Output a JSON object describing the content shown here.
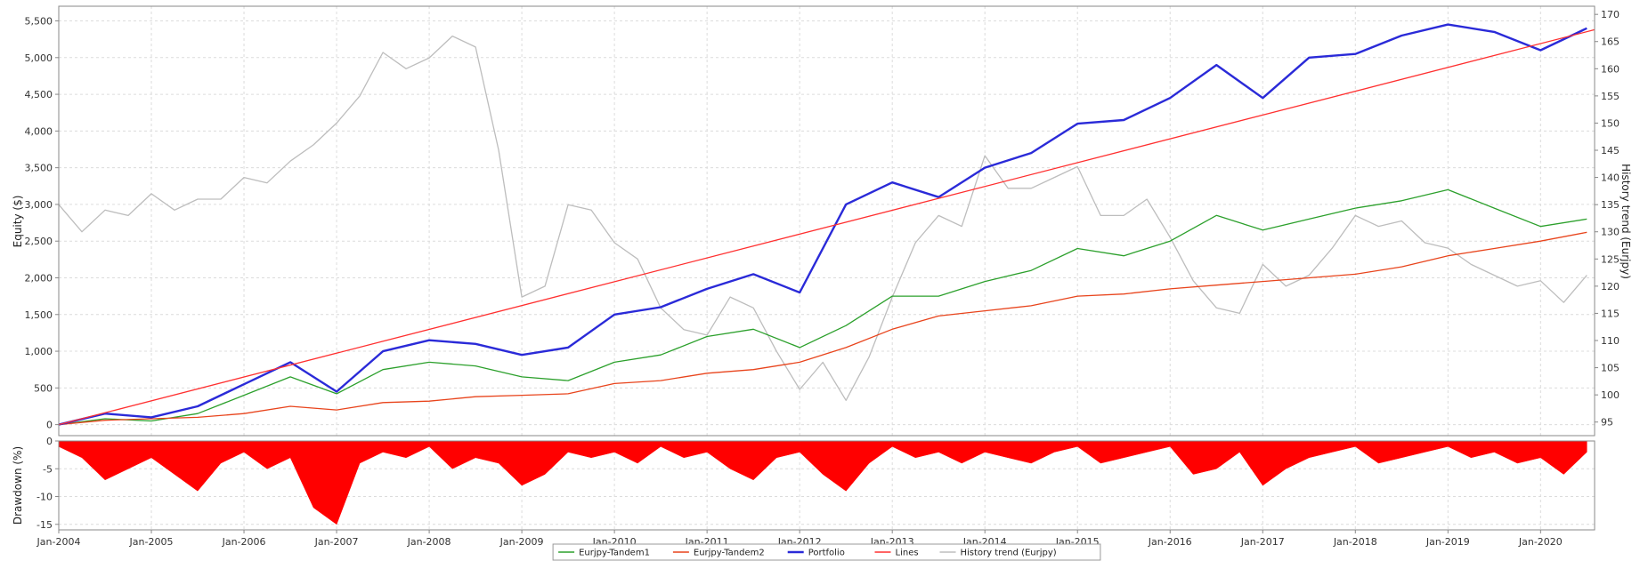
{
  "chart_data": [
    {
      "type": "line",
      "title": "",
      "ylabel": "Equity ($)",
      "y2label": "History trend (Eurjpy)",
      "xlim": [
        "2004-01-01",
        "2020-08-01"
      ],
      "ylim": [
        -150,
        5700
      ],
      "y2lim": [
        92.5,
        171.5
      ],
      "x_ticks": [
        "Jan-2004",
        "Jan-2005",
        "Jan-2006",
        "Jan-2007",
        "Jan-2008",
        "Jan-2009",
        "Jan-2010",
        "Jan-2011",
        "Jan-2012",
        "Jan-2013",
        "Jan-2014",
        "Jan-2015",
        "Jan-2016",
        "Jan-2017",
        "Jan-2018",
        "Jan-2019",
        "Jan-2020"
      ],
      "y_ticks": [
        "0",
        "500",
        "1,000",
        "1,500",
        "2,000",
        "2,500",
        "3,000",
        "3,500",
        "4,000",
        "4,500",
        "5,000",
        "5,500"
      ],
      "y2_ticks": [
        "95",
        "100",
        "105",
        "110",
        "115",
        "120",
        "125",
        "130",
        "135",
        "140",
        "145",
        "150",
        "155",
        "160",
        "165",
        "170"
      ],
      "grid": true,
      "legend_position": "bottom-center",
      "series": [
        {
          "name": "Eurjpy-Tandem1",
          "color": "#2ca02c",
          "axis": "left",
          "x": [
            "2004-01",
            "2004-07",
            "2005-01",
            "2005-07",
            "2006-01",
            "2006-07",
            "2007-01",
            "2007-07",
            "2008-01",
            "2008-07",
            "2009-01",
            "2009-07",
            "2010-01",
            "2010-07",
            "2011-01",
            "2011-07",
            "2012-01",
            "2012-07",
            "2013-01",
            "2013-07",
            "2014-01",
            "2014-07",
            "2015-01",
            "2015-07",
            "2016-01",
            "2016-07",
            "2017-01",
            "2017-07",
            "2018-01",
            "2018-07",
            "2019-01",
            "2019-07",
            "2020-01",
            "2020-07"
          ],
          "y": [
            0,
            80,
            50,
            150,
            400,
            650,
            420,
            750,
            850,
            800,
            650,
            600,
            850,
            950,
            1200,
            1300,
            1050,
            1350,
            1750,
            1750,
            1950,
            2100,
            2400,
            2300,
            2500,
            2850,
            2650,
            2800,
            2950,
            3050,
            3200,
            2950,
            2700,
            2800
          ]
        },
        {
          "name": "Eurjpy-Tandem2",
          "color": "#e8441c",
          "axis": "left",
          "x": [
            "2004-01",
            "2004-07",
            "2005-01",
            "2005-07",
            "2006-01",
            "2006-07",
            "2007-01",
            "2007-07",
            "2008-01",
            "2008-07",
            "2009-01",
            "2009-07",
            "2010-01",
            "2010-07",
            "2011-01",
            "2011-07",
            "2012-01",
            "2012-07",
            "2013-01",
            "2013-07",
            "2014-01",
            "2014-07",
            "2015-01",
            "2015-07",
            "2016-01",
            "2016-07",
            "2017-01",
            "2017-07",
            "2018-01",
            "2018-07",
            "2019-01",
            "2019-07",
            "2020-01",
            "2020-07"
          ],
          "y": [
            0,
            60,
            80,
            100,
            150,
            250,
            200,
            300,
            320,
            380,
            400,
            420,
            560,
            600,
            700,
            750,
            850,
            1050,
            1300,
            1480,
            1550,
            1620,
            1750,
            1780,
            1850,
            1900,
            1950,
            2000,
            2050,
            2150,
            2300,
            2400,
            2500,
            2620
          ]
        },
        {
          "name": "Portfolio",
          "color": "#2a2ad8",
          "axis": "left",
          "x": [
            "2004-01",
            "2004-07",
            "2005-01",
            "2005-07",
            "2006-01",
            "2006-07",
            "2007-01",
            "2007-07",
            "2008-01",
            "2008-07",
            "2009-01",
            "2009-07",
            "2010-01",
            "2010-07",
            "2011-01",
            "2011-07",
            "2012-01",
            "2012-07",
            "2013-01",
            "2013-07",
            "2014-01",
            "2014-07",
            "2015-01",
            "2015-07",
            "2016-01",
            "2016-07",
            "2017-01",
            "2017-07",
            "2018-01",
            "2018-07",
            "2019-01",
            "2019-07",
            "2020-01",
            "2020-07"
          ],
          "y": [
            0,
            150,
            100,
            250,
            550,
            850,
            450,
            1000,
            1150,
            1100,
            950,
            1050,
            1500,
            1600,
            1850,
            2050,
            1800,
            3000,
            3300,
            3100,
            3500,
            3700,
            4100,
            4150,
            4450,
            4900,
            4450,
            5000,
            5050,
            5300,
            5450,
            5350,
            5100,
            5400
          ]
        },
        {
          "name": "Lines",
          "color": "#ff3030",
          "axis": "left",
          "x": [
            "2004-01",
            "2020-08"
          ],
          "y": [
            0,
            5380
          ]
        },
        {
          "name": "History trend (Eurjpy)",
          "color": "#bdbdbd",
          "axis": "right",
          "x": [
            "2004-01",
            "2004-04",
            "2004-07",
            "2004-10",
            "2005-01",
            "2005-04",
            "2005-07",
            "2005-10",
            "2006-01",
            "2006-04",
            "2006-07",
            "2006-10",
            "2007-01",
            "2007-04",
            "2007-07",
            "2007-10",
            "2008-01",
            "2008-04",
            "2008-07",
            "2008-10",
            "2009-01",
            "2009-04",
            "2009-07",
            "2009-10",
            "2010-01",
            "2010-04",
            "2010-07",
            "2010-10",
            "2011-01",
            "2011-04",
            "2011-07",
            "2011-10",
            "2012-01",
            "2012-04",
            "2012-07",
            "2012-10",
            "2013-01",
            "2013-04",
            "2013-07",
            "2013-10",
            "2014-01",
            "2014-04",
            "2014-07",
            "2014-10",
            "2015-01",
            "2015-04",
            "2015-07",
            "2015-10",
            "2016-01",
            "2016-04",
            "2016-07",
            "2016-10",
            "2017-01",
            "2017-04",
            "2017-07",
            "2017-10",
            "2018-01",
            "2018-04",
            "2018-07",
            "2018-10",
            "2019-01",
            "2019-04",
            "2019-07",
            "2019-10",
            "2020-01",
            "2020-04",
            "2020-07"
          ],
          "y": [
            135,
            130,
            134,
            133,
            137,
            134,
            136,
            136,
            140,
            139,
            143,
            146,
            150,
            155,
            163,
            160,
            162,
            166,
            164,
            145,
            118,
            120,
            135,
            134,
            128,
            125,
            116,
            112,
            111,
            118,
            116,
            108,
            101,
            106,
            99,
            107,
            118,
            128,
            133,
            131,
            144,
            138,
            138,
            140,
            142,
            133,
            133,
            136,
            129,
            121,
            116,
            115,
            124,
            120,
            122,
            127,
            133,
            131,
            132,
            128,
            127,
            124,
            122,
            120,
            121,
            117,
            122
          ]
        }
      ]
    },
    {
      "type": "area",
      "ylabel": "Drawdown (%)",
      "ylim": [
        -16,
        0
      ],
      "y_ticks": [
        "0",
        "-5",
        "-10",
        "-15"
      ],
      "grid": true,
      "series": [
        {
          "name": "",
          "color": "#ff0000",
          "x": [
            "2004-01",
            "2004-04",
            "2004-07",
            "2004-10",
            "2005-01",
            "2005-04",
            "2005-07",
            "2005-10",
            "2006-01",
            "2006-04",
            "2006-07",
            "2006-10",
            "2007-01",
            "2007-04",
            "2007-07",
            "2007-10",
            "2008-01",
            "2008-04",
            "2008-07",
            "2008-10",
            "2009-01",
            "2009-04",
            "2009-07",
            "2009-10",
            "2010-01",
            "2010-04",
            "2010-07",
            "2010-10",
            "2011-01",
            "2011-04",
            "2011-07",
            "2011-10",
            "2012-01",
            "2012-04",
            "2012-07",
            "2012-10",
            "2013-01",
            "2013-04",
            "2013-07",
            "2013-10",
            "2014-01",
            "2014-04",
            "2014-07",
            "2014-10",
            "2015-01",
            "2015-04",
            "2015-07",
            "2015-10",
            "2016-01",
            "2016-04",
            "2016-07",
            "2016-10",
            "2017-01",
            "2017-04",
            "2017-07",
            "2017-10",
            "2018-01",
            "2018-04",
            "2018-07",
            "2018-10",
            "2019-01",
            "2019-04",
            "2019-07",
            "2019-10",
            "2020-01",
            "2020-04",
            "2020-07"
          ],
          "y": [
            -1,
            -3,
            -7,
            -5,
            -3,
            -6,
            -9,
            -4,
            -2,
            -5,
            -3,
            -12,
            -15,
            -4,
            -2,
            -3,
            -1,
            -5,
            -3,
            -4,
            -8,
            -6,
            -2,
            -3,
            -2,
            -4,
            -1,
            -3,
            -2,
            -5,
            -7,
            -3,
            -2,
            -6,
            -9,
            -4,
            -1,
            -3,
            -2,
            -4,
            -2,
            -3,
            -4,
            -2,
            -1,
            -4,
            -3,
            -2,
            -1,
            -6,
            -5,
            -2,
            -8,
            -5,
            -3,
            -2,
            -1,
            -4,
            -3,
            -2,
            -1,
            -3,
            -2,
            -4,
            -3,
            -6,
            -2
          ]
        }
      ]
    }
  ]
}
